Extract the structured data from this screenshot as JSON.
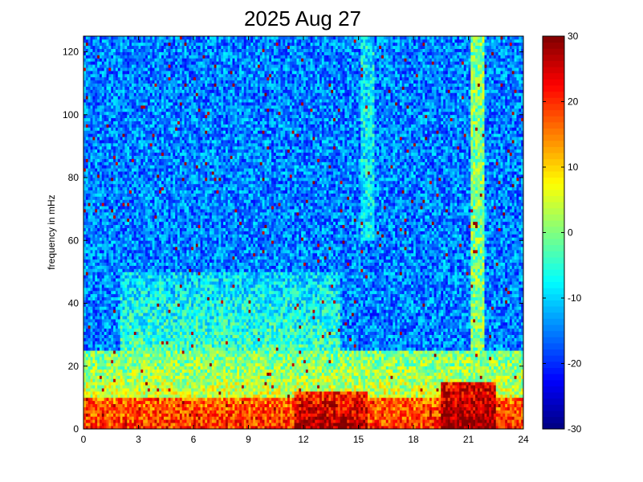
{
  "chart_data": {
    "type": "heatmap",
    "title": "2025 Aug 27",
    "xlabel": "",
    "ylabel": "frequency in mHz",
    "xlim": [
      0,
      24
    ],
    "ylim": [
      0,
      125
    ],
    "x_ticks": [
      0,
      3,
      6,
      9,
      12,
      15,
      18,
      21,
      24
    ],
    "y_ticks": [
      0,
      20,
      40,
      60,
      80,
      100,
      120
    ],
    "colorbar": {
      "colormap": "jet",
      "clim": [
        -30,
        30
      ],
      "ticks": [
        -30,
        -20,
        -10,
        0,
        10,
        20,
        30
      ]
    },
    "grid": false,
    "features": {
      "background_level": -15,
      "low_frequency_band": {
        "freq_range": [
          0,
          10
        ],
        "level": 20
      },
      "broadband_enhancement": {
        "time_range": [
          2,
          14
        ],
        "freq_range": [
          10,
          50
        ],
        "level": 0
      },
      "strong_bursts": [
        {
          "time_range": [
            11.5,
            15.5
          ],
          "freq_range": [
            0,
            12
          ],
          "level": 28
        },
        {
          "time_range": [
            19.5,
            22.5
          ],
          "freq_range": [
            0,
            15
          ],
          "level": 30
        }
      ],
      "vertical_streaks": [
        {
          "time": 15.5,
          "freq_range": [
            60,
            125
          ],
          "level": -8
        },
        {
          "time": 21.5,
          "freq_range": [
            10,
            125
          ],
          "level": 0
        }
      ]
    }
  }
}
